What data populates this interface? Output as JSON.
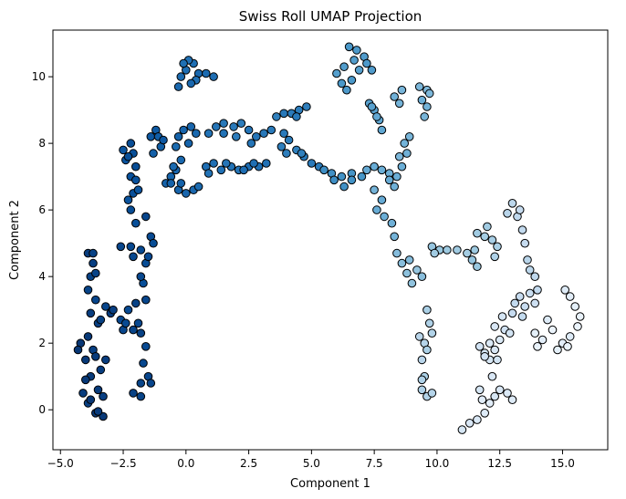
{
  "chart_data": {
    "type": "scatter",
    "title": "Swiss Roll UMAP Projection",
    "xlabel": "Component 1",
    "ylabel": "Component 2",
    "xlim": [
      -5.3,
      16.8
    ],
    "ylim": [
      -1.2,
      11.4
    ],
    "xticks": [
      -5.0,
      -2.5,
      0.0,
      2.5,
      5.0,
      7.5,
      10.0,
      12.5,
      15.0
    ],
    "xtick_labels": [
      "−5.0",
      "−2.5",
      "0.0",
      "2.5",
      "5.0",
      "7.5",
      "10.0",
      "12.5",
      "15.0"
    ],
    "yticks": [
      0,
      2,
      4,
      6,
      8,
      10
    ],
    "ytick_labels": [
      "0",
      "2",
      "4",
      "6",
      "8",
      "10"
    ],
    "grid": false,
    "legend": "none",
    "colormap": "Blues (reversed): dark blue at low Component 1, white at high Component 1",
    "marker_color_dark": "#08306b",
    "marker_color_mid": "#4292c6",
    "marker_color_light": "#c6dbef",
    "marker_edge": "#000000",
    "clusters": [
      {
        "c": 0.05,
        "pts": [
          [
            -4.2,
            2.0
          ],
          [
            -4.0,
            1.5
          ],
          [
            -3.8,
            1.0
          ],
          [
            -4.1,
            0.5
          ],
          [
            -3.9,
            0.2
          ],
          [
            -3.6,
            -0.1
          ],
          [
            -3.3,
            -0.2
          ],
          [
            -3.5,
            0.6
          ],
          [
            -3.4,
            1.2
          ],
          [
            -3.7,
            1.8
          ],
          [
            -4.3,
            1.8
          ],
          [
            -3.9,
            2.2
          ],
          [
            -3.6,
            1.6
          ],
          [
            -3.2,
            1.5
          ],
          [
            -3.3,
            0.4
          ],
          [
            -3.8,
            0.3
          ],
          [
            -4.0,
            0.9
          ],
          [
            -3.5,
            -0.05
          ]
        ]
      },
      {
        "c": 0.08,
        "pts": [
          [
            -3.9,
            4.7
          ],
          [
            -3.7,
            4.4
          ],
          [
            -3.8,
            4.0
          ],
          [
            -3.9,
            3.6
          ],
          [
            -3.6,
            3.3
          ],
          [
            -3.8,
            2.9
          ],
          [
            -3.5,
            2.6
          ],
          [
            -3.7,
            4.7
          ],
          [
            -3.6,
            4.1
          ],
          [
            -3.2,
            3.1
          ],
          [
            -3.0,
            2.9
          ],
          [
            -2.9,
            3.0
          ],
          [
            -3.4,
            2.7
          ]
        ]
      },
      {
        "c": 0.1,
        "pts": [
          [
            -2.1,
            0.5
          ],
          [
            -1.8,
            0.8
          ],
          [
            -1.5,
            1.0
          ],
          [
            -1.7,
            1.4
          ],
          [
            -1.6,
            1.9
          ],
          [
            -1.8,
            2.3
          ],
          [
            -2.1,
            2.4
          ],
          [
            -2.5,
            2.4
          ],
          [
            -2.6,
            2.7
          ],
          [
            -2.3,
            3.0
          ],
          [
            -2.0,
            3.2
          ],
          [
            -1.8,
            0.4
          ],
          [
            -1.4,
            0.8
          ],
          [
            -1.9,
            2.6
          ],
          [
            -2.4,
            2.6
          ]
        ]
      },
      {
        "c": 0.12,
        "pts": [
          [
            -2.6,
            4.9
          ],
          [
            -2.2,
            4.9
          ],
          [
            -1.8,
            4.8
          ],
          [
            -1.6,
            4.4
          ],
          [
            -1.7,
            3.8
          ],
          [
            -1.6,
            3.3
          ],
          [
            -1.8,
            4.0
          ],
          [
            -1.4,
            5.2
          ],
          [
            -1.3,
            5.0
          ],
          [
            -2.0,
            5.6
          ],
          [
            -1.6,
            5.8
          ],
          [
            -2.1,
            4.6
          ],
          [
            -1.5,
            4.6
          ]
        ]
      },
      {
        "c": 0.15,
        "pts": [
          [
            -2.2,
            6.0
          ],
          [
            -2.1,
            6.5
          ],
          [
            -2.2,
            7.0
          ],
          [
            -2.4,
            7.5
          ],
          [
            -2.5,
            7.8
          ],
          [
            -2.2,
            8.0
          ],
          [
            -2.1,
            7.7
          ],
          [
            -2.0,
            6.9
          ],
          [
            -2.3,
            6.3
          ],
          [
            -1.9,
            6.6
          ],
          [
            -2.0,
            7.3
          ],
          [
            -2.3,
            7.6
          ]
        ]
      },
      {
        "c": 0.2,
        "pts": [
          [
            -1.4,
            8.2
          ],
          [
            -1.2,
            8.4
          ],
          [
            -1.0,
            7.9
          ],
          [
            -1.1,
            8.2
          ],
          [
            -1.3,
            7.7
          ],
          [
            -0.9,
            8.1
          ]
        ]
      },
      {
        "c": 0.25,
        "pts": [
          [
            -0.8,
            6.8
          ],
          [
            -0.6,
            7.0
          ],
          [
            -0.4,
            7.2
          ],
          [
            -0.2,
            7.5
          ],
          [
            -0.4,
            7.9
          ],
          [
            -0.3,
            8.2
          ],
          [
            -0.1,
            8.4
          ],
          [
            0.2,
            8.5
          ],
          [
            0.4,
            8.3
          ],
          [
            -0.5,
            7.3
          ],
          [
            -0.6,
            6.8
          ],
          [
            -0.3,
            6.6
          ],
          [
            0.0,
            6.5
          ],
          [
            0.3,
            6.6
          ],
          [
            0.5,
            6.7
          ],
          [
            -0.2,
            6.8
          ],
          [
            0.1,
            8.0
          ]
        ]
      },
      {
        "c": 0.28,
        "pts": [
          [
            -0.3,
            9.7
          ],
          [
            -0.2,
            10.0
          ],
          [
            0.0,
            10.2
          ],
          [
            0.3,
            10.4
          ],
          [
            0.1,
            10.5
          ],
          [
            0.5,
            10.1
          ],
          [
            0.8,
            10.1
          ],
          [
            1.1,
            10.0
          ],
          [
            -0.1,
            10.4
          ],
          [
            0.4,
            9.9
          ],
          [
            0.2,
            9.8
          ]
        ]
      },
      {
        "c": 0.3,
        "pts": [
          [
            0.8,
            7.3
          ],
          [
            1.1,
            7.4
          ],
          [
            1.4,
            7.2
          ],
          [
            1.8,
            7.3
          ],
          [
            2.1,
            7.2
          ],
          [
            2.5,
            7.3
          ],
          [
            2.9,
            7.3
          ],
          [
            3.2,
            7.4
          ],
          [
            0.9,
            7.1
          ],
          [
            1.6,
            7.4
          ],
          [
            2.3,
            7.2
          ],
          [
            2.7,
            7.4
          ]
        ]
      },
      {
        "c": 0.33,
        "pts": [
          [
            0.9,
            8.3
          ],
          [
            1.2,
            8.5
          ],
          [
            1.5,
            8.6
          ],
          [
            1.9,
            8.5
          ],
          [
            2.2,
            8.6
          ],
          [
            2.5,
            8.4
          ],
          [
            2.8,
            8.2
          ],
          [
            3.1,
            8.3
          ],
          [
            3.4,
            8.4
          ],
          [
            2.0,
            8.2
          ],
          [
            1.5,
            8.3
          ],
          [
            2.6,
            8.0
          ]
        ]
      },
      {
        "c": 0.35,
        "pts": [
          [
            3.9,
            8.9
          ],
          [
            4.2,
            8.9
          ],
          [
            4.5,
            9.0
          ],
          [
            4.8,
            9.1
          ],
          [
            3.6,
            8.8
          ],
          [
            4.4,
            8.8
          ],
          [
            3.9,
            8.3
          ],
          [
            4.1,
            8.1
          ],
          [
            3.8,
            7.9
          ],
          [
            4.4,
            7.8
          ],
          [
            4.7,
            7.6
          ],
          [
            5.0,
            7.4
          ],
          [
            5.3,
            7.3
          ],
          [
            4.0,
            7.7
          ],
          [
            4.6,
            7.7
          ]
        ]
      },
      {
        "c": 0.45,
        "pts": [
          [
            5.5,
            7.2
          ],
          [
            5.8,
            7.1
          ],
          [
            6.2,
            7.0
          ],
          [
            6.6,
            7.1
          ],
          [
            7.0,
            7.0
          ],
          [
            5.9,
            6.9
          ],
          [
            6.3,
            6.7
          ],
          [
            6.6,
            6.9
          ]
        ]
      },
      {
        "c": 0.5,
        "pts": [
          [
            6.5,
            10.9
          ],
          [
            6.8,
            10.8
          ],
          [
            7.1,
            10.6
          ],
          [
            6.7,
            10.5
          ],
          [
            6.9,
            10.2
          ],
          [
            6.6,
            9.9
          ],
          [
            7.2,
            10.4
          ],
          [
            7.4,
            10.2
          ],
          [
            6.3,
            10.3
          ],
          [
            6.0,
            10.1
          ],
          [
            6.2,
            9.8
          ],
          [
            6.4,
            9.6
          ]
        ]
      },
      {
        "c": 0.55,
        "pts": [
          [
            7.3,
            9.2
          ],
          [
            7.5,
            9.0
          ],
          [
            7.7,
            8.7
          ],
          [
            7.8,
            8.4
          ],
          [
            7.6,
            8.8
          ],
          [
            7.4,
            9.1
          ]
        ]
      },
      {
        "c": 0.6,
        "pts": [
          [
            7.2,
            7.2
          ],
          [
            7.5,
            7.3
          ],
          [
            7.8,
            7.2
          ],
          [
            8.1,
            7.1
          ],
          [
            7.5,
            6.6
          ],
          [
            7.8,
            6.3
          ],
          [
            7.6,
            6.0
          ],
          [
            7.9,
            5.8
          ],
          [
            8.2,
            5.6
          ],
          [
            8.3,
            5.2
          ],
          [
            8.1,
            6.9
          ]
        ]
      },
      {
        "c": 0.62,
        "pts": [
          [
            8.6,
            7.3
          ],
          [
            8.8,
            7.7
          ],
          [
            8.7,
            8.0
          ],
          [
            8.9,
            8.2
          ],
          [
            8.5,
            7.6
          ],
          [
            8.4,
            7.0
          ],
          [
            8.3,
            6.7
          ]
        ]
      },
      {
        "c": 0.63,
        "pts": [
          [
            8.3,
            9.4
          ],
          [
            8.5,
            9.2
          ],
          [
            8.6,
            9.6
          ],
          [
            9.3,
            9.7
          ],
          [
            9.6,
            9.6
          ],
          [
            9.4,
            9.3
          ],
          [
            9.6,
            9.1
          ],
          [
            9.5,
            8.8
          ],
          [
            9.7,
            9.5
          ]
        ]
      },
      {
        "c": 0.68,
        "pts": [
          [
            8.4,
            4.7
          ],
          [
            8.6,
            4.4
          ],
          [
            8.8,
            4.1
          ],
          [
            9.0,
            3.8
          ],
          [
            9.2,
            4.2
          ],
          [
            8.9,
            4.5
          ],
          [
            9.4,
            4.0
          ]
        ]
      },
      {
        "c": 0.72,
        "pts": [
          [
            9.8,
            4.9
          ],
          [
            10.1,
            4.8
          ],
          [
            10.4,
            4.8
          ],
          [
            10.8,
            4.8
          ],
          [
            11.2,
            4.7
          ],
          [
            11.4,
            4.5
          ],
          [
            11.6,
            4.3
          ],
          [
            11.5,
            4.8
          ],
          [
            9.9,
            4.7
          ]
        ]
      },
      {
        "c": 0.75,
        "pts": [
          [
            11.6,
            5.3
          ],
          [
            11.9,
            5.2
          ],
          [
            12.2,
            5.1
          ],
          [
            12.4,
            4.9
          ],
          [
            12.3,
            4.6
          ],
          [
            12.0,
            5.5
          ]
        ]
      },
      {
        "c": 0.78,
        "pts": [
          [
            9.6,
            3.0
          ],
          [
            9.7,
            2.6
          ],
          [
            9.8,
            2.3
          ],
          [
            9.5,
            2.0
          ],
          [
            9.4,
            1.5
          ],
          [
            9.5,
            1.0
          ],
          [
            9.4,
            0.6
          ],
          [
            9.6,
            0.4
          ],
          [
            9.8,
            0.5
          ],
          [
            9.3,
            2.2
          ],
          [
            9.6,
            1.8
          ],
          [
            9.4,
            0.9
          ]
        ]
      },
      {
        "c": 0.82,
        "pts": [
          [
            12.8,
            5.9
          ],
          [
            13.0,
            6.2
          ],
          [
            13.2,
            5.8
          ],
          [
            13.4,
            5.4
          ],
          [
            13.5,
            5.0
          ],
          [
            13.6,
            4.5
          ],
          [
            13.7,
            4.2
          ],
          [
            13.9,
            4.0
          ],
          [
            14.0,
            3.6
          ],
          [
            13.3,
            6.0
          ]
        ]
      },
      {
        "c": 0.85,
        "pts": [
          [
            13.1,
            3.2
          ],
          [
            13.3,
            3.4
          ],
          [
            13.5,
            3.1
          ],
          [
            13.7,
            3.5
          ],
          [
            13.9,
            3.2
          ],
          [
            13.4,
            2.8
          ],
          [
            13.0,
            2.9
          ]
        ]
      },
      {
        "c": 0.9,
        "pts": [
          [
            11.7,
            1.9
          ],
          [
            11.9,
            1.7
          ],
          [
            12.1,
            1.5
          ],
          [
            12.3,
            1.8
          ],
          [
            12.5,
            2.1
          ],
          [
            12.7,
            2.4
          ],
          [
            12.9,
            2.3
          ],
          [
            12.6,
            2.8
          ],
          [
            12.3,
            2.5
          ],
          [
            12.1,
            2.0
          ],
          [
            11.9,
            1.6
          ],
          [
            12.4,
            1.5
          ]
        ]
      },
      {
        "c": 0.92,
        "pts": [
          [
            11.0,
            -0.6
          ],
          [
            11.3,
            -0.4
          ],
          [
            11.6,
            -0.3
          ],
          [
            11.9,
            -0.1
          ],
          [
            12.1,
            0.2
          ],
          [
            12.3,
            0.4
          ],
          [
            12.5,
            0.6
          ],
          [
            12.8,
            0.5
          ],
          [
            13.0,
            0.3
          ],
          [
            11.8,
            0.3
          ],
          [
            11.7,
            0.6
          ],
          [
            12.2,
            1.0
          ]
        ]
      },
      {
        "c": 0.95,
        "pts": [
          [
            15.1,
            3.6
          ],
          [
            15.3,
            3.4
          ],
          [
            15.5,
            3.1
          ],
          [
            15.7,
            2.8
          ],
          [
            15.6,
            2.5
          ],
          [
            15.3,
            2.2
          ],
          [
            15.0,
            2.0
          ],
          [
            14.8,
            1.8
          ],
          [
            15.2,
            1.9
          ],
          [
            14.6,
            2.4
          ],
          [
            14.4,
            2.7
          ],
          [
            14.2,
            2.1
          ],
          [
            13.9,
            2.3
          ],
          [
            14.0,
            1.9
          ]
        ]
      }
    ]
  }
}
